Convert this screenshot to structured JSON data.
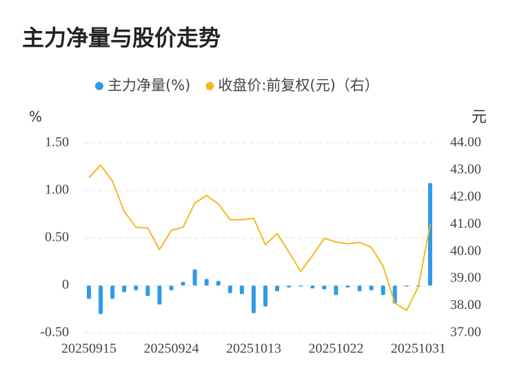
{
  "chart_data": {
    "type": "bar-line",
    "title": "主力净量与股价走势",
    "ylabel": "%",
    "y2label": "元",
    "categories": [
      "20250915",
      null,
      null,
      null,
      null,
      null,
      null,
      "20250924",
      null,
      null,
      null,
      null,
      null,
      null,
      "20251013",
      null,
      null,
      null,
      null,
      null,
      null,
      "20251022",
      null,
      null,
      null,
      null,
      null,
      null,
      "20251031",
      null
    ],
    "series": [
      {
        "name": "主力净量(%)",
        "type": "bar",
        "color": "#2f9be8",
        "axis": "y",
        "values": [
          -0.14,
          -0.3,
          -0.14,
          -0.07,
          -0.05,
          -0.11,
          -0.2,
          -0.05,
          0.04,
          0.17,
          0.07,
          0.05,
          -0.08,
          -0.09,
          -0.29,
          -0.22,
          -0.06,
          -0.02,
          -0.01,
          -0.03,
          -0.04,
          -0.1,
          -0.02,
          -0.06,
          -0.05,
          -0.1,
          -0.19,
          -0.01,
          -0.01,
          1.08
        ]
      },
      {
        "name": "收盘价:前复权(元)（右）",
        "type": "line",
        "color": "#f4b81e",
        "axis": "y2",
        "values": [
          42.73,
          43.19,
          42.6,
          41.48,
          40.9,
          40.87,
          40.08,
          40.79,
          40.9,
          41.79,
          42.07,
          41.76,
          41.18,
          41.18,
          41.23,
          40.26,
          40.67,
          39.98,
          39.27,
          39.85,
          40.49,
          40.36,
          40.29,
          40.34,
          40.16,
          39.47,
          38.1,
          37.84,
          38.71,
          41.0
        ]
      }
    ],
    "ylim": [
      -0.5,
      1.5
    ],
    "yticks": [
      {
        "value": 1.5,
        "label": "1.50"
      },
      {
        "value": 1.0,
        "label": "1.00"
      },
      {
        "value": 0.5,
        "label": "0.50"
      },
      0,
      {
        "value": -0.5,
        "label": "-0.50"
      }
    ],
    "y2lim": [
      37,
      44
    ],
    "y2ticks": [
      {
        "value": 44,
        "label": "44.00"
      },
      {
        "value": 43,
        "label": "43.00"
      },
      {
        "value": 42,
        "label": "42.00"
      },
      {
        "value": 41,
        "label": "41.00"
      },
      {
        "value": 40,
        "label": "40.00"
      },
      {
        "value": 39,
        "label": "39.00"
      },
      {
        "value": 38,
        "label": "38.00"
      },
      {
        "value": 37,
        "label": "37.00"
      }
    ],
    "grid": true,
    "legend": "top"
  }
}
